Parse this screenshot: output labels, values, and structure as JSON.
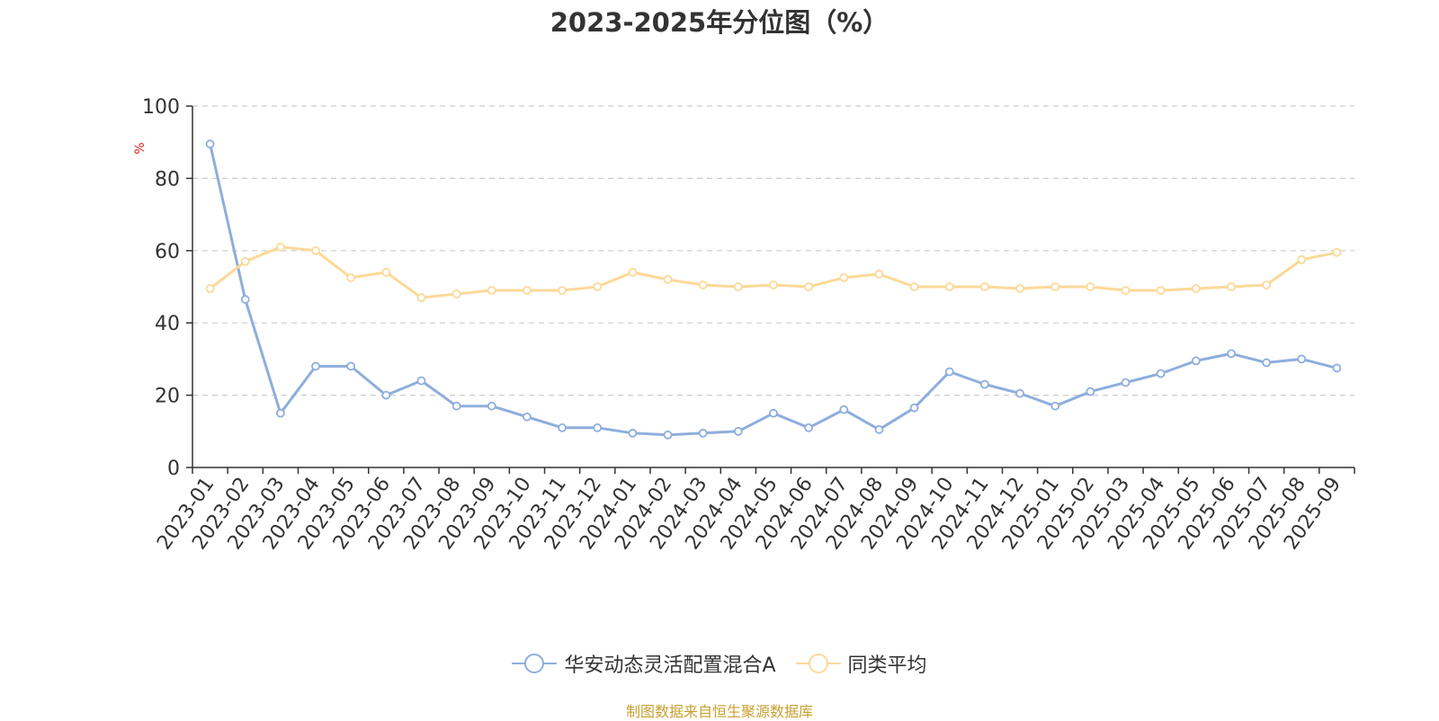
{
  "chart_data": {
    "type": "line",
    "title": "2023-2025年分位图（%）",
    "ylabel": "%",
    "xlabel": "",
    "ylim": [
      0,
      100
    ],
    "yticks": [
      0,
      20,
      40,
      60,
      80,
      100
    ],
    "grid": true,
    "legend_position": "bottom",
    "categories": [
      "2023-01",
      "2023-02",
      "2023-03",
      "2023-04",
      "2023-05",
      "2023-06",
      "2023-07",
      "2023-08",
      "2023-09",
      "2023-10",
      "2023-11",
      "2023-12",
      "2024-01",
      "2024-02",
      "2024-03",
      "2024-04",
      "2024-05",
      "2024-06",
      "2024-07",
      "2024-08",
      "2024-09",
      "2024-10",
      "2024-11",
      "2024-12",
      "2025-01",
      "2025-02",
      "2025-03",
      "2025-04",
      "2025-05",
      "2025-06",
      "2025-07",
      "2025-08",
      "2025-09"
    ],
    "series": [
      {
        "name": "华安动态灵活配置混合A",
        "color": "#8eaedc",
        "values": [
          89.5,
          46.5,
          15.0,
          28.0,
          28.0,
          20.0,
          24.0,
          17.0,
          17.0,
          14.0,
          11.0,
          11.0,
          9.5,
          9.0,
          9.5,
          10.0,
          15.0,
          11.0,
          16.0,
          10.5,
          16.5,
          26.5,
          23.0,
          20.5,
          17.0,
          21.0,
          23.5,
          26.0,
          29.5,
          31.5,
          29.0,
          30.0,
          27.5
        ]
      },
      {
        "name": "同类平均",
        "color": "#fcd998",
        "values": [
          49.5,
          57.0,
          61.0,
          60.0,
          52.5,
          54.0,
          47.0,
          48.0,
          49.0,
          49.0,
          49.0,
          50.0,
          54.0,
          52.0,
          50.5,
          50.0,
          50.5,
          50.0,
          52.5,
          53.5,
          50.0,
          50.0,
          50.0,
          49.5,
          50.0,
          50.0,
          49.0,
          49.0,
          49.5,
          50.0,
          50.5,
          57.5,
          59.5
        ]
      }
    ]
  },
  "source_text": "制图数据来自恒生聚源数据库"
}
